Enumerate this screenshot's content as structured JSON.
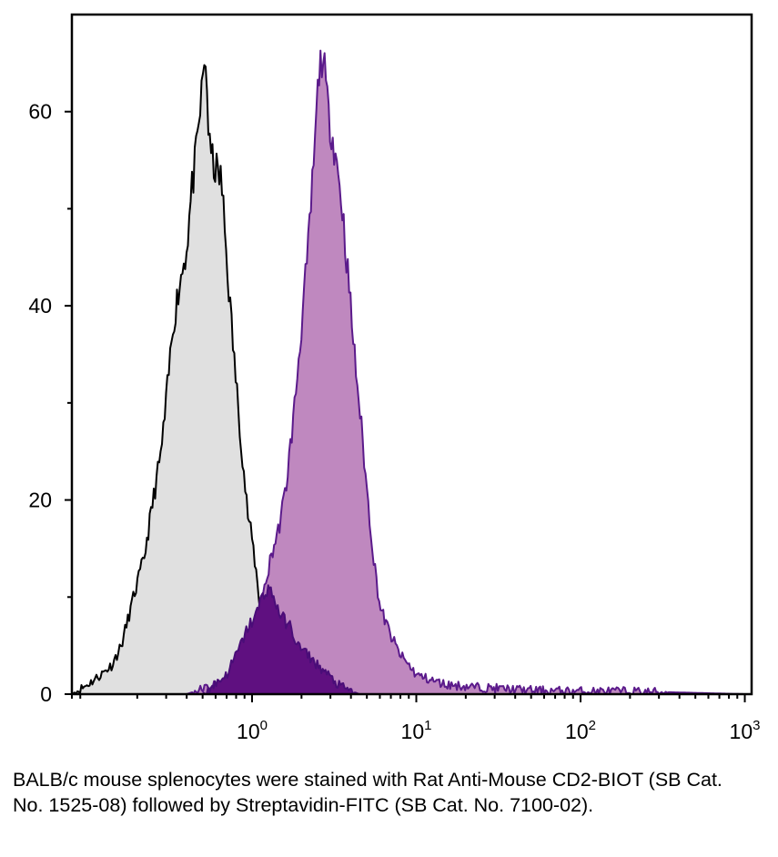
{
  "chart_data": {
    "type": "area",
    "title": "",
    "xlabel": "",
    "ylabel": "",
    "x_scale": "log",
    "xlim": [
      0.08,
      1100
    ],
    "ylim": [
      0,
      70
    ],
    "grid": false,
    "legend": "none",
    "x_ticks": [
      {
        "value": 1,
        "base": "10",
        "exp": "0"
      },
      {
        "value": 10,
        "base": "10",
        "exp": "1"
      },
      {
        "value": 100,
        "base": "10",
        "exp": "2"
      },
      {
        "value": 1000,
        "base": "10",
        "exp": "3"
      }
    ],
    "y_ticks": [
      {
        "value": 0,
        "label": "0"
      },
      {
        "value": 20,
        "label": "20"
      },
      {
        "value": 40,
        "label": "40"
      },
      {
        "value": 60,
        "label": "60"
      }
    ],
    "y_minor_ticks": [
      10,
      30,
      50
    ],
    "series": [
      {
        "fill": "#e0e0e0",
        "stroke": "#000000",
        "x": [
          0.08,
          0.1,
          0.12,
          0.14,
          0.16,
          0.19,
          0.22,
          0.25,
          0.28,
          0.3,
          0.33,
          0.36,
          0.4,
          0.43,
          0.46,
          0.5,
          0.52,
          0.55,
          0.6,
          0.65,
          0.7,
          0.75,
          0.8,
          0.85,
          0.9,
          0.95,
          1.0,
          1.07,
          1.15,
          1.25,
          1.35,
          1.5
        ],
        "y": [
          0,
          1,
          2,
          3,
          5,
          10,
          14,
          20,
          25,
          30,
          38,
          42,
          46,
          52,
          56,
          63,
          66,
          56,
          54,
          53,
          45,
          38,
          32,
          27,
          22,
          18,
          16,
          12,
          7,
          3,
          1,
          0
        ]
      },
      {
        "fill": "#bf88bf",
        "stroke": "#5b1a8b",
        "x": [
          0.4,
          0.6,
          0.8,
          1.0,
          1.1,
          1.2,
          1.3,
          1.45,
          1.6,
          1.8,
          2.0,
          2.2,
          2.4,
          2.55,
          2.7,
          2.9,
          3.2,
          3.5,
          3.8,
          4.2,
          4.6,
          5.0,
          5.5,
          6.0,
          7.0,
          8.0,
          9.0,
          10,
          12,
          15,
          20,
          30,
          50,
          100,
          200,
          1000
        ],
        "y": [
          0,
          1,
          2,
          4,
          8,
          11,
          14,
          17,
          21,
          29,
          38,
          46,
          56,
          64,
          66,
          60,
          56,
          51,
          44,
          35,
          28,
          21,
          14,
          9,
          6,
          4,
          3,
          2,
          1.5,
          1,
          0.8,
          0.6,
          0.4,
          0.3,
          0.3,
          0
        ]
      },
      {
        "fill": "#5f1080",
        "stroke": "#4a0d78",
        "x": [
          0.5,
          0.7,
          0.85,
          0.95,
          1.05,
          1.15,
          1.25,
          1.35,
          1.5,
          1.7,
          1.9,
          2.2,
          2.5,
          2.9,
          3.3,
          3.8,
          4.5
        ],
        "y": [
          0,
          2,
          5,
          7,
          8,
          10,
          11,
          10,
          8,
          7,
          5,
          4,
          3,
          2,
          1,
          0.5,
          0
        ]
      }
    ]
  },
  "caption": "BALB/c mouse splenocytes were stained with Rat Anti-Mouse CD2-BIOT (SB Cat. No. 1525-08) followed by Streptavidin-FITC (SB Cat. No. 7100-02)."
}
